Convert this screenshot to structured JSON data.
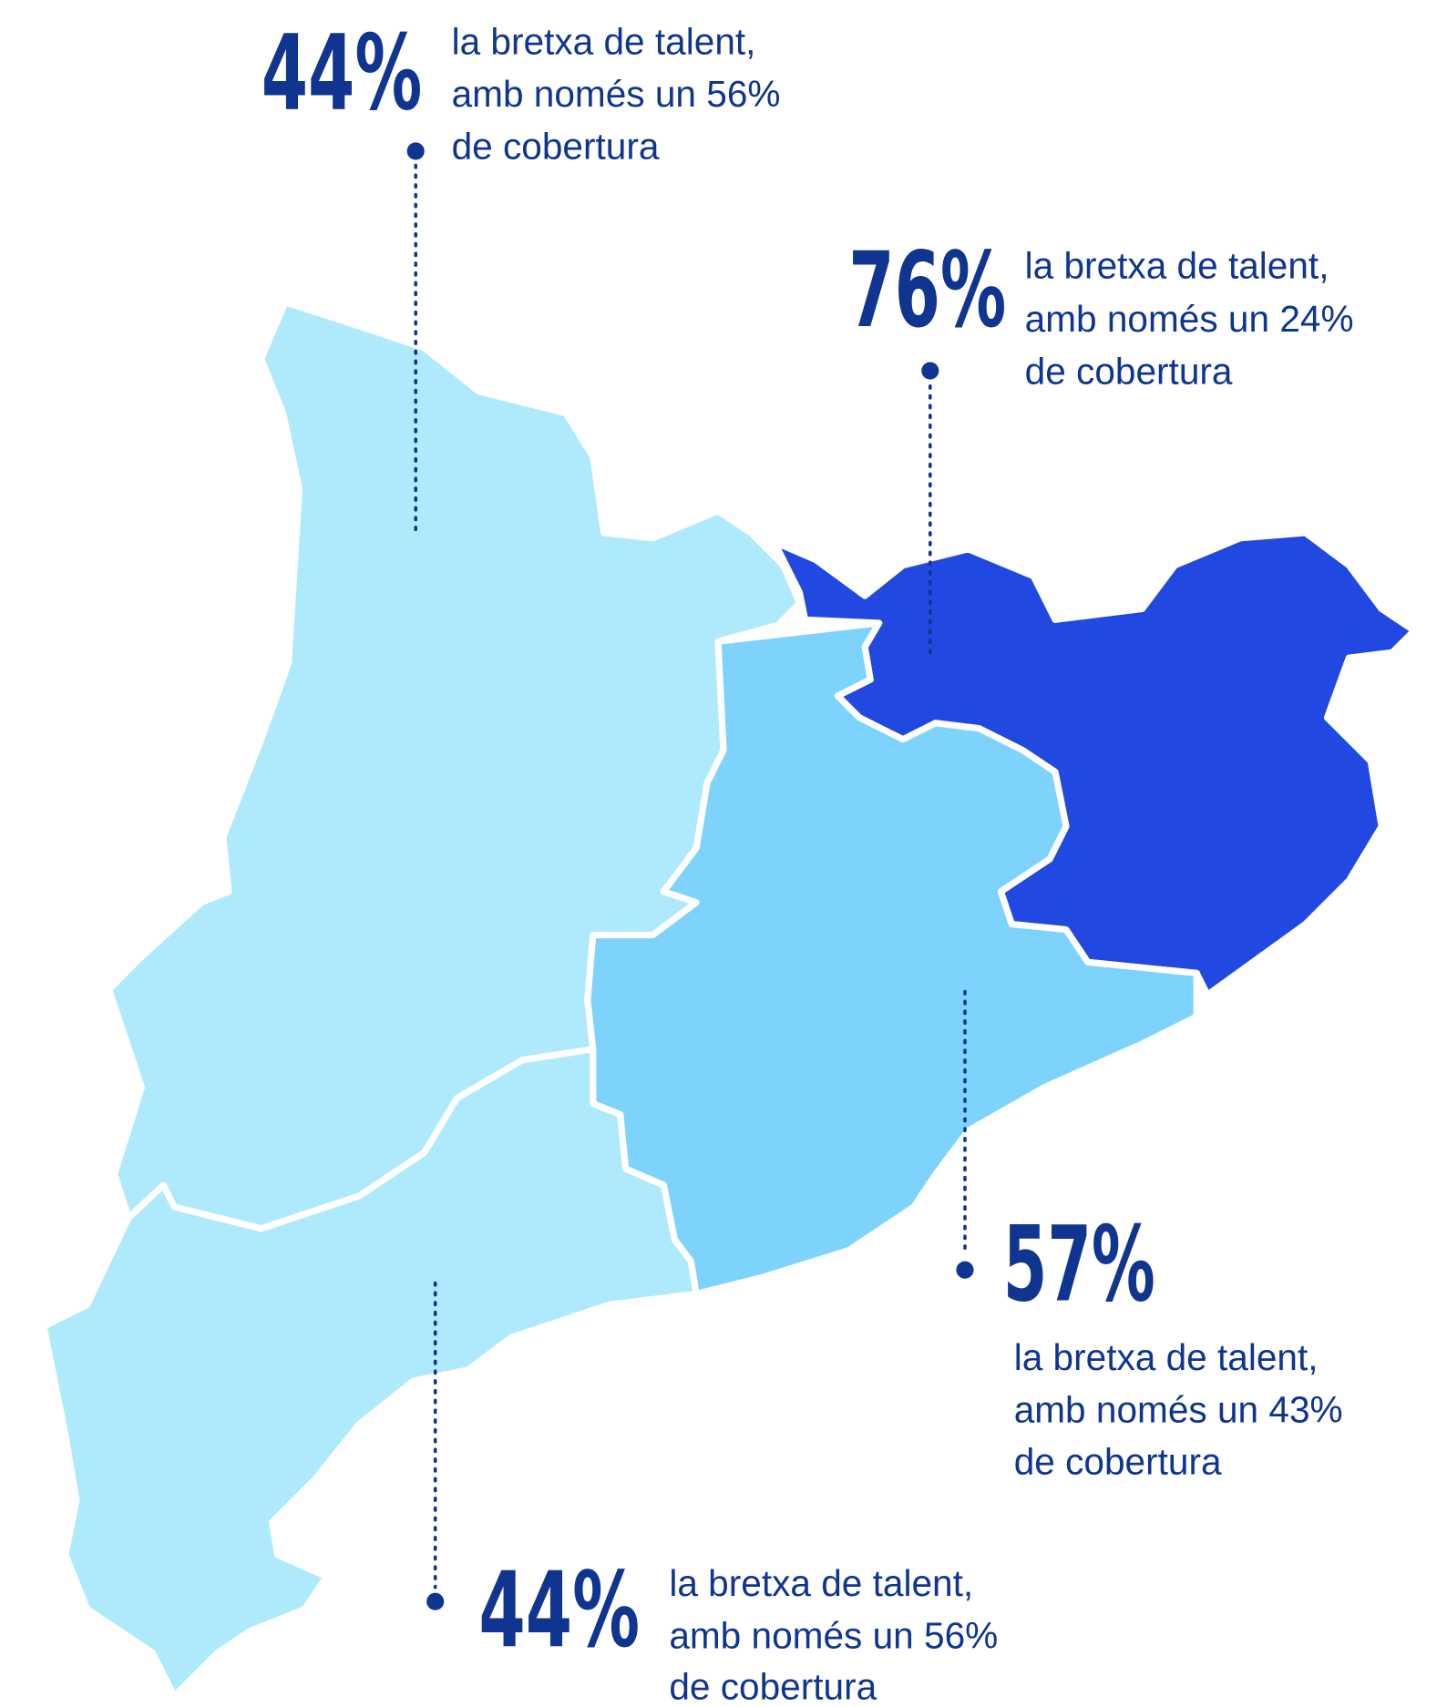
{
  "regions": [
    {
      "value": "44%",
      "lines": [
        "la bretxa de talent,",
        "amb només un 56%",
        "de cobertura"
      ]
    },
    {
      "value": "76%",
      "lines": [
        "la bretxa de talent,",
        "amb només un 24%",
        "de cobertura"
      ]
    },
    {
      "value": "57%",
      "lines": [
        "la bretxa de talent,",
        "amb només un 43%",
        "de cobertura"
      ]
    },
    {
      "value": "44%",
      "lines": [
        "la bretxa de talent,",
        "amb només un 56%",
        "de cobertura"
      ]
    }
  ]
}
